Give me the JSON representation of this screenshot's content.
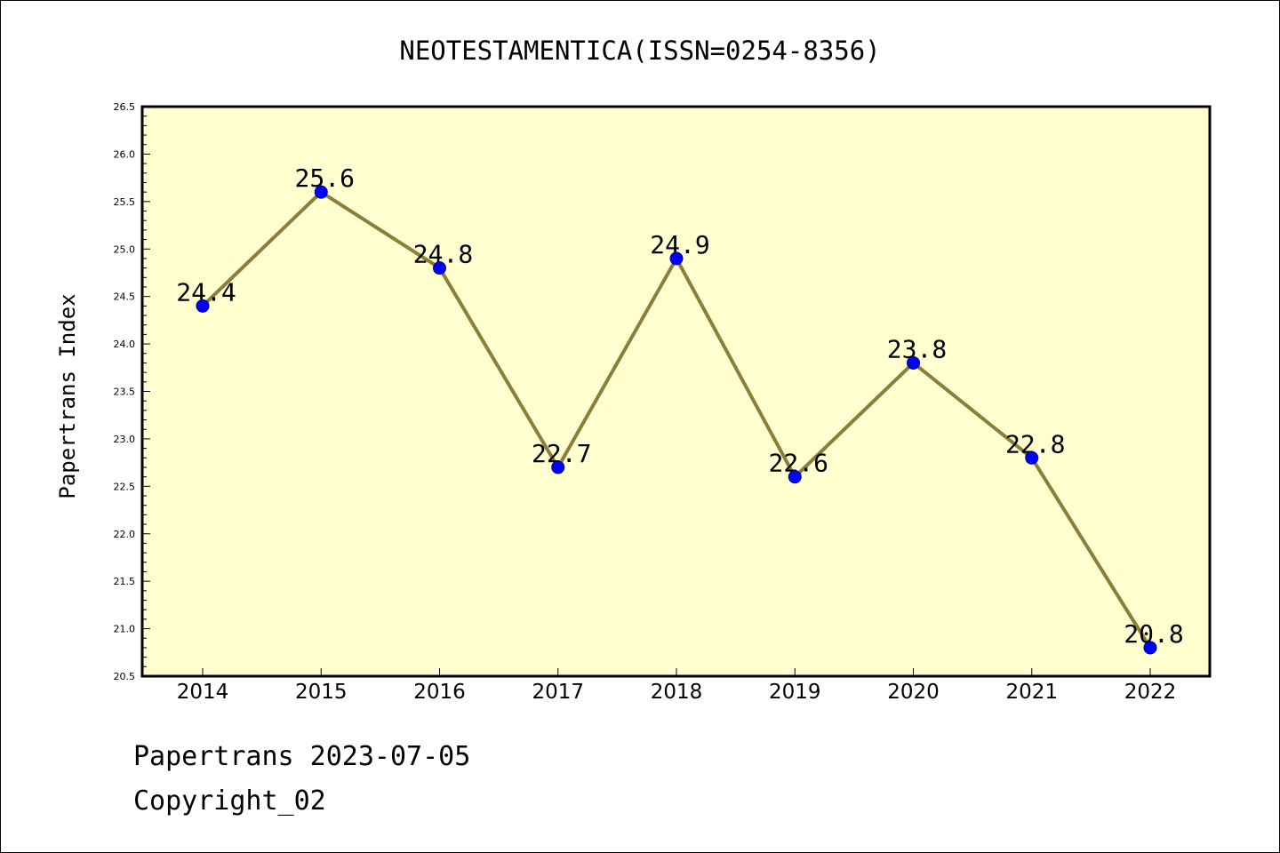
{
  "chart_data": {
    "type": "line",
    "title": "NEOTESTAMENTICA(ISSN=0254-8356)",
    "xlabel": "",
    "ylabel": "Papertrans Index",
    "categories": [
      "2014",
      "2015",
      "2016",
      "2017",
      "2018",
      "2019",
      "2020",
      "2021",
      "2022"
    ],
    "series": [
      {
        "values": [
          24.4,
          25.6,
          24.8,
          22.7,
          24.9,
          22.6,
          23.8,
          22.8,
          20.8
        ],
        "data_labels": [
          "24.4",
          "25.6",
          "24.8",
          "22.7",
          "24.9",
          "22.6",
          "23.8",
          "22.8",
          "20.8"
        ]
      }
    ],
    "ylim": [
      20.5,
      26.5
    ],
    "yticks": [
      "20.5",
      "21.0",
      "21.5",
      "22.0",
      "22.5",
      "23.0",
      "23.5",
      "24.0",
      "24.5",
      "25.0",
      "25.5",
      "26.0",
      "26.5"
    ],
    "grid": false,
    "legend": "none",
    "colors": {
      "plot_background": "#ffffd0",
      "line": "#8b7d3a",
      "marker_fill": "#0000ff",
      "marker_edge": "#000080"
    }
  },
  "footer": {
    "date_line": "Papertrans 2023-07-05",
    "copyright": "Copyright_02"
  }
}
